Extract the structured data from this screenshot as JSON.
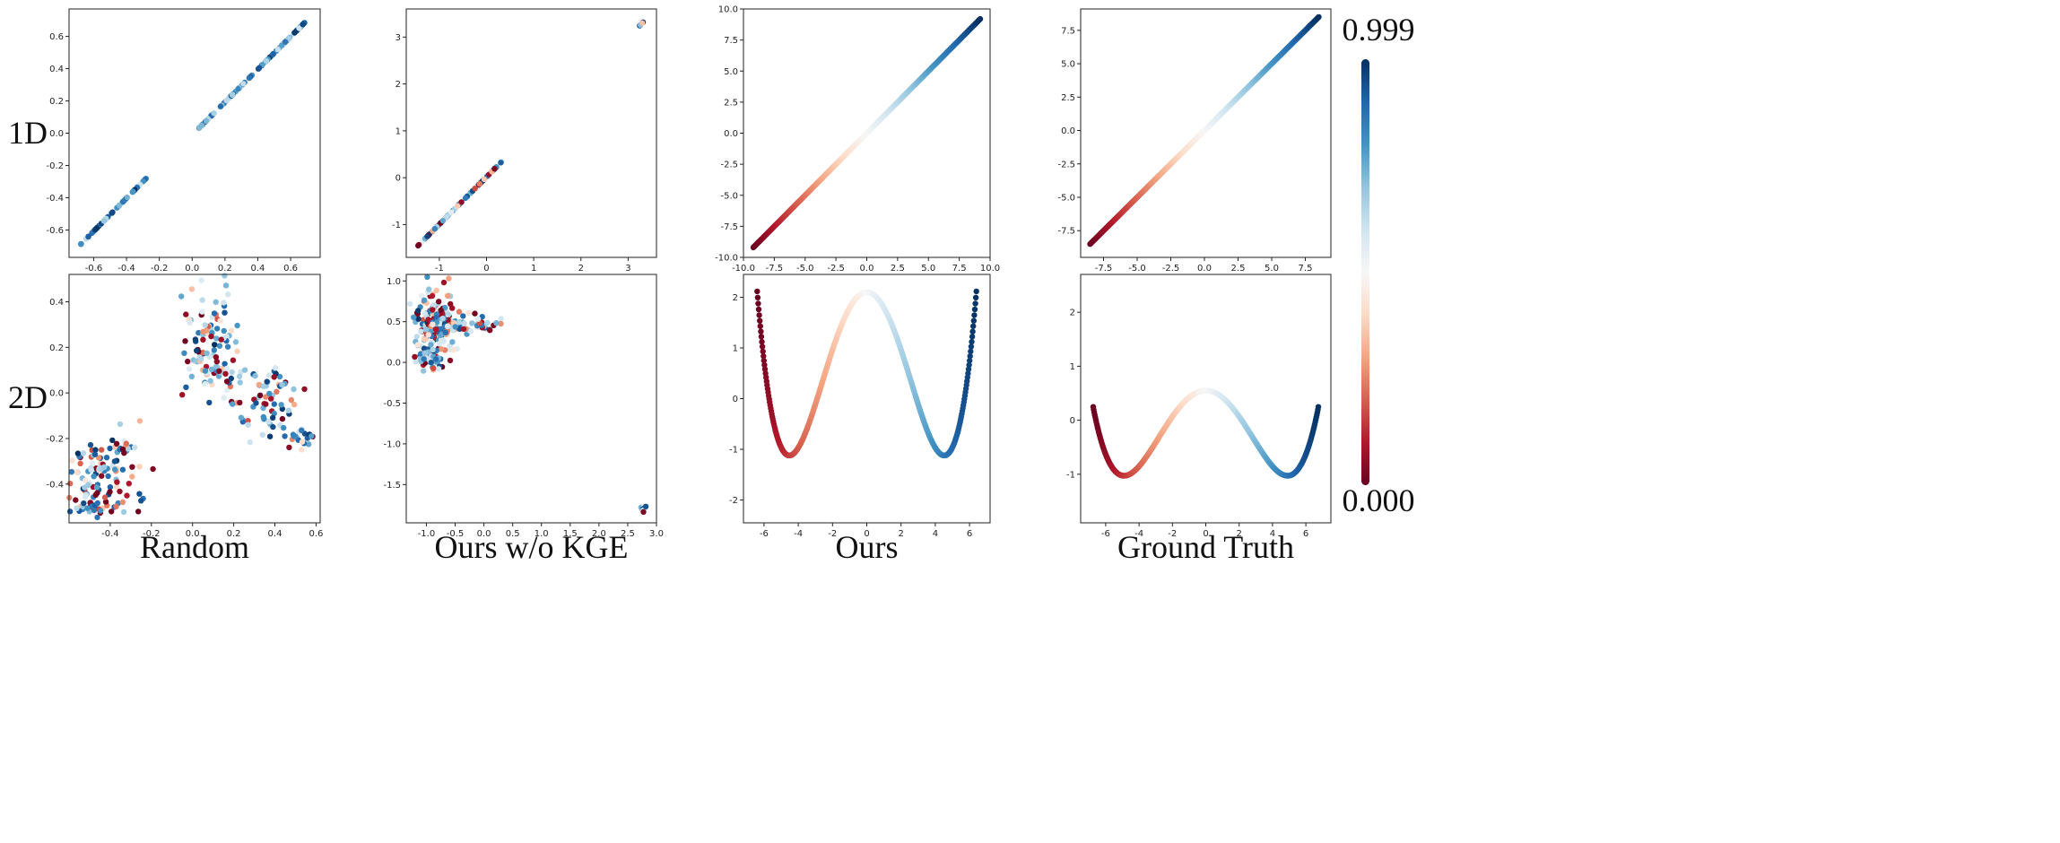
{
  "figure": {
    "row_labels": [
      "1D",
      "2D"
    ],
    "column_labels": [
      "Random",
      "Ours w/o KGE",
      "Ours",
      "Ground Truth"
    ]
  },
  "colorbar": {
    "max_label": "0.999",
    "min_label": "0.000",
    "colormap": "RdBu",
    "stops": [
      "#67001f",
      "#b2182b",
      "#d6604d",
      "#f4a582",
      "#fddbc7",
      "#f7f7f7",
      "#d1e5f0",
      "#92c5de",
      "#4393c3",
      "#2166ac",
      "#053061"
    ]
  },
  "chart_data": [
    {
      "panel": "1D-Random",
      "type": "scatter",
      "row": "1D",
      "column": "Random",
      "xlim": [
        -0.75,
        0.78
      ],
      "ylim": [
        -0.77,
        0.77
      ],
      "xticks": [
        "-0.6",
        "-0.4",
        "-0.2",
        "0.0",
        "0.2",
        "0.4",
        "0.6"
      ],
      "yticks": [
        "-0.6",
        "-0.4",
        "-0.2",
        "0.0",
        "0.2",
        "0.4",
        "0.6"
      ],
      "xticks_v": [
        -0.6,
        -0.4,
        -0.2,
        0.0,
        0.2,
        0.4,
        0.6
      ],
      "yticks_v": [
        -0.6,
        -0.4,
        -0.2,
        0.0,
        0.2,
        0.4,
        0.6
      ],
      "segments": [
        {
          "x0": -0.68,
          "y0": -0.69,
          "x1": -0.28,
          "y1": -0.28,
          "n": 60
        },
        {
          "x0": 0.04,
          "y0": 0.03,
          "x1": 0.69,
          "y1": 0.69,
          "n": 120
        }
      ],
      "color_mode": "random_blue"
    },
    {
      "panel": "1D-OursWoKGE",
      "type": "scatter",
      "row": "1D",
      "column": "Ours w/o KGE",
      "xlim": [
        -1.7,
        3.6
      ],
      "ylim": [
        -1.7,
        3.6
      ],
      "xticks": [
        "-1",
        "0",
        "1",
        "2",
        "3"
      ],
      "yticks": [
        "-1",
        "0",
        "1",
        "2",
        "3"
      ],
      "xticks_v": [
        -1,
        0,
        1,
        2,
        3
      ],
      "yticks_v": [
        -1,
        0,
        1,
        2,
        3
      ],
      "segments": [
        {
          "x0": -1.45,
          "y0": -1.45,
          "x1": 0.32,
          "y1": 0.34,
          "n": 90
        },
        {
          "x0": 3.24,
          "y0": 3.24,
          "x1": 3.33,
          "y1": 3.33,
          "n": 8
        }
      ],
      "color_mode": "random_mixed"
    },
    {
      "panel": "1D-Ours",
      "type": "scatter",
      "row": "1D",
      "column": "Ours",
      "xlim": [
        -10.0,
        10.0
      ],
      "ylim": [
        -10.0,
        10.0
      ],
      "xticks": [
        "-10.0",
        "-7.5",
        "-5.0",
        "-2.5",
        "0.0",
        "2.5",
        "5.0",
        "7.5",
        "10.0"
      ],
      "yticks": [
        "-10.0",
        "-7.5",
        "-5.0",
        "-2.5",
        "0.0",
        "2.5",
        "5.0",
        "7.5",
        "10.0"
      ],
      "xticks_v": [
        -10.0,
        -7.5,
        -5.0,
        -2.5,
        0.0,
        2.5,
        5.0,
        7.5,
        10.0
      ],
      "yticks_v": [
        -10.0,
        -7.5,
        -5.0,
        -2.5,
        0.0,
        2.5,
        5.0,
        7.5,
        10.0
      ],
      "curve": "line",
      "x_range": [
        -9.2,
        9.2
      ],
      "slope": 1.0,
      "color_mode": "gradient"
    },
    {
      "panel": "1D-GroundTruth",
      "type": "scatter",
      "row": "1D",
      "column": "Ground Truth",
      "xlim": [
        -9.2,
        9.4
      ],
      "ylim": [
        -9.5,
        9.1
      ],
      "xticks": [
        "-7.5",
        "-5.0",
        "-2.5",
        "0.0",
        "2.5",
        "5.0",
        "7.5"
      ],
      "yticks": [
        "-7.5",
        "-5.0",
        "-2.5",
        "0.0",
        "2.5",
        "5.0",
        "7.5"
      ],
      "xticks_v": [
        -7.5,
        -5.0,
        -2.5,
        0.0,
        2.5,
        5.0,
        7.5
      ],
      "yticks_v": [
        -7.5,
        -5.0,
        -2.5,
        0.0,
        2.5,
        5.0,
        7.5
      ],
      "curve": "line",
      "x_range": [
        -8.5,
        8.5
      ],
      "slope": 1.0,
      "color_mode": "gradient"
    },
    {
      "panel": "2D-Random",
      "type": "scatter",
      "row": "2D",
      "column": "Random",
      "xlim": [
        -0.6,
        0.62
      ],
      "ylim": [
        -0.57,
        0.52
      ],
      "xticks": [
        "-0.4",
        "-0.2",
        "0.0",
        "0.2",
        "0.4",
        "0.6"
      ],
      "yticks": [
        "-0.4",
        "-0.2",
        "0.0",
        "0.2",
        "0.4"
      ],
      "xticks_v": [
        -0.4,
        -0.2,
        0.0,
        0.2,
        0.4,
        0.6
      ],
      "yticks_v": [
        -0.4,
        -0.2,
        0.0,
        0.2,
        0.4
      ],
      "clusters": [
        {
          "cx": 0.08,
          "cy": 0.22,
          "sx": 0.07,
          "sy": 0.12,
          "n": 110
        },
        {
          "cx": 0.35,
          "cy": -0.05,
          "sx": 0.09,
          "sy": 0.08,
          "n": 70
        },
        {
          "cx": 0.52,
          "cy": -0.2,
          "sx": 0.04,
          "sy": 0.03,
          "n": 20
        },
        {
          "cx": -0.42,
          "cy": -0.35,
          "sx": 0.1,
          "sy": 0.1,
          "n": 110
        },
        {
          "cx": -0.47,
          "cy": -0.48,
          "sx": 0.05,
          "sy": 0.03,
          "n": 30
        }
      ],
      "color_mode": "random_mixed"
    },
    {
      "panel": "2D-OursWoKGE",
      "type": "scatter",
      "row": "2D",
      "column": "Ours w/o KGE",
      "xlim": [
        -1.35,
        3.0
      ],
      "ylim": [
        -1.97,
        1.08
      ],
      "xticks": [
        "-1.0",
        "-0.5",
        "0.0",
        "0.5",
        "1.0",
        "1.5",
        "2.0",
        "2.5",
        "3.0"
      ],
      "yticks": [
        "-1.5",
        "-1.0",
        "-0.5",
        "0.0",
        "0.5",
        "1.0"
      ],
      "xticks_v": [
        -1.0,
        -0.5,
        0.0,
        0.5,
        1.0,
        1.5,
        2.0,
        2.5,
        3.0
      ],
      "yticks_v": [
        -1.5,
        -1.0,
        -0.5,
        0.0,
        0.5,
        1.0
      ],
      "clusters": [
        {
          "cx": -0.85,
          "cy": 0.45,
          "sx": 0.17,
          "sy": 0.22,
          "n": 170
        },
        {
          "cx": -0.95,
          "cy": 0.05,
          "sx": 0.1,
          "sy": 0.06,
          "n": 60
        },
        {
          "cx": -0.3,
          "cy": 0.48,
          "sx": 0.3,
          "sy": 0.06,
          "n": 60
        },
        {
          "cx": 2.78,
          "cy": -1.79,
          "sx": 0.02,
          "sy": 0.02,
          "n": 8
        }
      ],
      "color_mode": "random_mixed"
    },
    {
      "panel": "2D-Ours",
      "type": "scatter",
      "row": "2D",
      "column": "Ours",
      "xlim": [
        -7.2,
        7.2
      ],
      "ylim": [
        -2.45,
        2.45
      ],
      "xticks": [
        "-6",
        "-4",
        "-2",
        "0",
        "2",
        "4",
        "6"
      ],
      "yticks": [
        "-2",
        "-1",
        "0",
        "1",
        "2"
      ],
      "xticks_v": [
        -6,
        -4,
        -2,
        0,
        2,
        4,
        6
      ],
      "yticks_v": [
        -2,
        -1,
        0,
        1,
        2
      ],
      "curve": "w",
      "x_range": [
        -6.4,
        6.4
      ],
      "a": 2.1,
      "b": 0.315,
      "c": 0.0077,
      "color_mode": "gradient"
    },
    {
      "panel": "2D-GroundTruth",
      "type": "scatter",
      "row": "2D",
      "column": "Ground Truth",
      "xlim": [
        -7.5,
        7.5
      ],
      "ylim": [
        -1.9,
        2.7
      ],
      "xticks": [
        "-6",
        "-4",
        "-2",
        "0",
        "2",
        "4",
        "6"
      ],
      "yticks": [
        "-1",
        "0",
        "1",
        "2"
      ],
      "xticks_v": [
        -6,
        -4,
        -2,
        0,
        2,
        4,
        6
      ],
      "yticks_v": [
        -1,
        0,
        1,
        2
      ],
      "curve": "w",
      "x_range": [
        -6.75,
        6.75
      ],
      "a": 0.55,
      "b": 0.1315,
      "c": 0.00274,
      "color_mode": "gradient"
    }
  ]
}
